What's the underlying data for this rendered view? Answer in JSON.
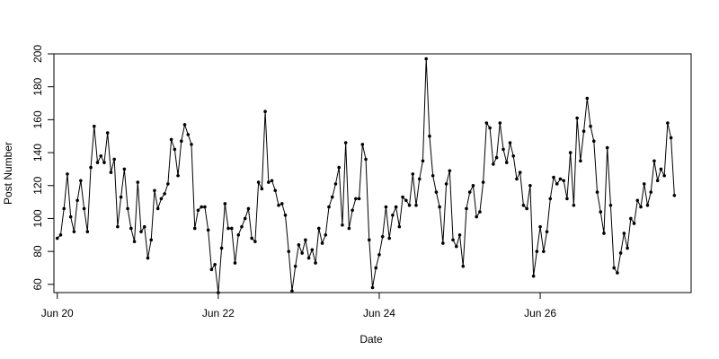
{
  "chart_data": {
    "type": "line",
    "title": "",
    "xlabel": "Date",
    "ylabel": "Post Number",
    "ylim": [
      55,
      200
    ],
    "xlim": [
      "Jun 19 23:00",
      "Jun 27 21:00"
    ],
    "grid": false,
    "legend": "none",
    "line_color": "#000000",
    "marker": "filled-circle",
    "x_ticks": [
      {
        "label": "Jun 20",
        "x": "Jun 20 00:00"
      },
      {
        "label": "Jun 22",
        "x": "Jun 22 00:00"
      },
      {
        "label": "Jun 24",
        "x": "Jun 24 00:00"
      },
      {
        "label": "Jun 26",
        "x": "Jun 26 00:00"
      }
    ],
    "y_ticks": [
      60,
      80,
      100,
      120,
      140,
      160,
      180,
      200
    ],
    "x_start": "Jun 20 00:00",
    "x_step_hours": 1,
    "series": [
      {
        "values": [
          88,
          90,
          106,
          127,
          101,
          92,
          111,
          123,
          106,
          92,
          131,
          156,
          134,
          138,
          134,
          152,
          128,
          136,
          95,
          113,
          130,
          106,
          94,
          86,
          122,
          92,
          95,
          76,
          87,
          117,
          106,
          112,
          115,
          121,
          148,
          142,
          126,
          147,
          157,
          151,
          145,
          94,
          105,
          107,
          107,
          93,
          69,
          72,
          55,
          82,
          109,
          94,
          94,
          73,
          90,
          95,
          100,
          106,
          88,
          86,
          122,
          118,
          165,
          122,
          123,
          117,
          108,
          109,
          102,
          80,
          56,
          71,
          84,
          79,
          87,
          76,
          81,
          73,
          94,
          85,
          90,
          107,
          113,
          121,
          131,
          96,
          146,
          94,
          105,
          112,
          112,
          145,
          136,
          87,
          58,
          70,
          78,
          89,
          107,
          88,
          102,
          107,
          95,
          113,
          111,
          108,
          127,
          108,
          124,
          135,
          197,
          150,
          126,
          116,
          107,
          85,
          121,
          129,
          87,
          83,
          90,
          71,
          106,
          116,
          120,
          101,
          104,
          122,
          158,
          155,
          133,
          137,
          158,
          142,
          134,
          146,
          138,
          124,
          128,
          108,
          106,
          120,
          65,
          80,
          95,
          80,
          92,
          112,
          125,
          121,
          124,
          123,
          112,
          140,
          108,
          161,
          135,
          153,
          173,
          156,
          147,
          116,
          104,
          91,
          143,
          108,
          70,
          67,
          79,
          91,
          82,
          100,
          97,
          111,
          107,
          121,
          108,
          116,
          135,
          123,
          130,
          126,
          158,
          149,
          114
        ]
      }
    ]
  }
}
